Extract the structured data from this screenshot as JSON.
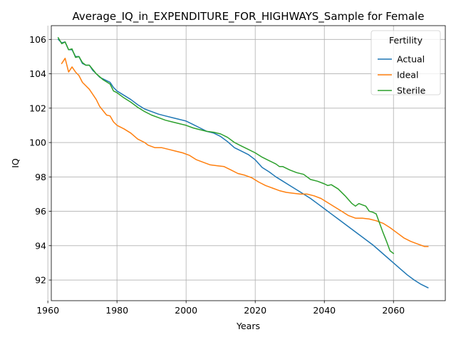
{
  "chart_data": {
    "type": "line",
    "title": "Average_IQ_in_EXPENDITURE_FOR_HIGHWAYS_Sample for Female",
    "xlabel": "Years",
    "ylabel": "IQ",
    "xlim": [
      1961,
      2075
    ],
    "ylim": [
      90.8,
      106.8
    ],
    "xticks": [
      1960,
      1980,
      2000,
      2020,
      2040,
      2060
    ],
    "yticks": [
      92,
      94,
      96,
      98,
      100,
      102,
      104,
      106
    ],
    "grid": true,
    "legend": {
      "title": "Fertility",
      "position": "top-right"
    },
    "series": [
      {
        "name": "Actual",
        "color": "#1f77b4",
        "points": [
          [
            1963,
            106.0
          ],
          [
            1964,
            105.8
          ],
          [
            1965,
            105.85
          ],
          [
            1966,
            105.4
          ],
          [
            1967,
            105.4
          ],
          [
            1968,
            105.0
          ],
          [
            1969,
            105.0
          ],
          [
            1970,
            104.6
          ],
          [
            1971,
            104.5
          ],
          [
            1972,
            104.5
          ],
          [
            1973,
            104.2
          ],
          [
            1974,
            104.0
          ],
          [
            1975,
            103.8
          ],
          [
            1976,
            103.7
          ],
          [
            1977,
            103.6
          ],
          [
            1978,
            103.5
          ],
          [
            1979,
            103.2
          ],
          [
            1980,
            103.0
          ],
          [
            1982,
            102.75
          ],
          [
            1984,
            102.5
          ],
          [
            1986,
            102.2
          ],
          [
            1988,
            101.95
          ],
          [
            1990,
            101.8
          ],
          [
            1992,
            101.65
          ],
          [
            1994,
            101.55
          ],
          [
            1996,
            101.45
          ],
          [
            1998,
            101.35
          ],
          [
            2000,
            101.25
          ],
          [
            2002,
            101.05
          ],
          [
            2004,
            100.85
          ],
          [
            2006,
            100.65
          ],
          [
            2008,
            100.55
          ],
          [
            2010,
            100.35
          ],
          [
            2012,
            100.05
          ],
          [
            2014,
            99.7
          ],
          [
            2016,
            99.5
          ],
          [
            2018,
            99.3
          ],
          [
            2020,
            99.0
          ],
          [
            2022,
            98.55
          ],
          [
            2024,
            98.3
          ],
          [
            2026,
            98.0
          ],
          [
            2028,
            97.75
          ],
          [
            2030,
            97.5
          ],
          [
            2032,
            97.25
          ],
          [
            2034,
            97.0
          ],
          [
            2036,
            96.75
          ],
          [
            2038,
            96.45
          ],
          [
            2040,
            96.15
          ],
          [
            2042,
            95.85
          ],
          [
            2044,
            95.55
          ],
          [
            2046,
            95.25
          ],
          [
            2048,
            94.95
          ],
          [
            2050,
            94.65
          ],
          [
            2052,
            94.35
          ],
          [
            2054,
            94.05
          ],
          [
            2056,
            93.7
          ],
          [
            2058,
            93.35
          ],
          [
            2060,
            93.0
          ],
          [
            2062,
            92.65
          ],
          [
            2064,
            92.3
          ],
          [
            2066,
            92.0
          ],
          [
            2068,
            91.75
          ],
          [
            2070,
            91.55
          ]
        ]
      },
      {
        "name": "Ideal",
        "color": "#ff7f0e",
        "points": [
          [
            1964,
            104.6
          ],
          [
            1965,
            104.9
          ],
          [
            1966,
            104.1
          ],
          [
            1967,
            104.4
          ],
          [
            1968,
            104.1
          ],
          [
            1969,
            103.9
          ],
          [
            1970,
            103.5
          ],
          [
            1972,
            103.1
          ],
          [
            1974,
            102.5
          ],
          [
            1975,
            102.1
          ],
          [
            1977,
            101.6
          ],
          [
            1978,
            101.55
          ],
          [
            1979,
            101.2
          ],
          [
            1980,
            101.0
          ],
          [
            1982,
            100.8
          ],
          [
            1984,
            100.55
          ],
          [
            1986,
            100.2
          ],
          [
            1988,
            100.0
          ],
          [
            1989,
            99.85
          ],
          [
            1991,
            99.7
          ],
          [
            1993,
            99.7
          ],
          [
            1995,
            99.6
          ],
          [
            1997,
            99.5
          ],
          [
            1999,
            99.4
          ],
          [
            2001,
            99.25
          ],
          [
            2003,
            99.0
          ],
          [
            2005,
            98.85
          ],
          [
            2007,
            98.7
          ],
          [
            2009,
            98.65
          ],
          [
            2011,
            98.6
          ],
          [
            2013,
            98.4
          ],
          [
            2015,
            98.2
          ],
          [
            2017,
            98.1
          ],
          [
            2019,
            97.95
          ],
          [
            2021,
            97.7
          ],
          [
            2023,
            97.5
          ],
          [
            2025,
            97.35
          ],
          [
            2027,
            97.2
          ],
          [
            2029,
            97.1
          ],
          [
            2031,
            97.05
          ],
          [
            2033,
            97.0
          ],
          [
            2035,
            97.0
          ],
          [
            2037,
            96.9
          ],
          [
            2039,
            96.75
          ],
          [
            2041,
            96.5
          ],
          [
            2043,
            96.25
          ],
          [
            2045,
            96.0
          ],
          [
            2047,
            95.75
          ],
          [
            2049,
            95.6
          ],
          [
            2051,
            95.6
          ],
          [
            2053,
            95.55
          ],
          [
            2055,
            95.45
          ],
          [
            2057,
            95.3
          ],
          [
            2059,
            95.05
          ],
          [
            2061,
            94.75
          ],
          [
            2063,
            94.45
          ],
          [
            2065,
            94.25
          ],
          [
            2067,
            94.1
          ],
          [
            2069,
            93.95
          ],
          [
            2070,
            93.95
          ]
        ]
      },
      {
        "name": "Sterile",
        "color": "#2ca02c",
        "points": [
          [
            1963,
            106.1
          ],
          [
            1964,
            105.75
          ],
          [
            1965,
            105.85
          ],
          [
            1966,
            105.4
          ],
          [
            1967,
            105.45
          ],
          [
            1968,
            104.95
          ],
          [
            1969,
            105.0
          ],
          [
            1970,
            104.65
          ],
          [
            1971,
            104.5
          ],
          [
            1972,
            104.5
          ],
          [
            1974,
            104.0
          ],
          [
            1976,
            103.65
          ],
          [
            1978,
            103.4
          ],
          [
            1979,
            103.0
          ],
          [
            1980,
            102.9
          ],
          [
            1982,
            102.6
          ],
          [
            1984,
            102.35
          ],
          [
            1986,
            102.05
          ],
          [
            1988,
            101.8
          ],
          [
            1990,
            101.6
          ],
          [
            1992,
            101.45
          ],
          [
            1994,
            101.3
          ],
          [
            1996,
            101.2
          ],
          [
            1998,
            101.1
          ],
          [
            2000,
            101.0
          ],
          [
            2002,
            100.85
          ],
          [
            2004,
            100.75
          ],
          [
            2006,
            100.65
          ],
          [
            2008,
            100.6
          ],
          [
            2010,
            100.5
          ],
          [
            2012,
            100.3
          ],
          [
            2014,
            100.0
          ],
          [
            2016,
            99.8
          ],
          [
            2018,
            99.6
          ],
          [
            2020,
            99.4
          ],
          [
            2022,
            99.15
          ],
          [
            2024,
            98.95
          ],
          [
            2026,
            98.75
          ],
          [
            2027,
            98.6
          ],
          [
            2028,
            98.6
          ],
          [
            2030,
            98.4
          ],
          [
            2032,
            98.25
          ],
          [
            2034,
            98.15
          ],
          [
            2036,
            97.85
          ],
          [
            2038,
            97.75
          ],
          [
            2040,
            97.6
          ],
          [
            2041,
            97.5
          ],
          [
            2042,
            97.55
          ],
          [
            2044,
            97.3
          ],
          [
            2046,
            96.9
          ],
          [
            2048,
            96.45
          ],
          [
            2049,
            96.3
          ],
          [
            2050,
            96.45
          ],
          [
            2052,
            96.3
          ],
          [
            2053,
            96.0
          ],
          [
            2054,
            95.95
          ],
          [
            2055,
            95.85
          ],
          [
            2056,
            95.3
          ],
          [
            2057,
            94.75
          ],
          [
            2058,
            94.25
          ],
          [
            2059,
            93.7
          ],
          [
            2060,
            93.55
          ]
        ]
      }
    ]
  }
}
